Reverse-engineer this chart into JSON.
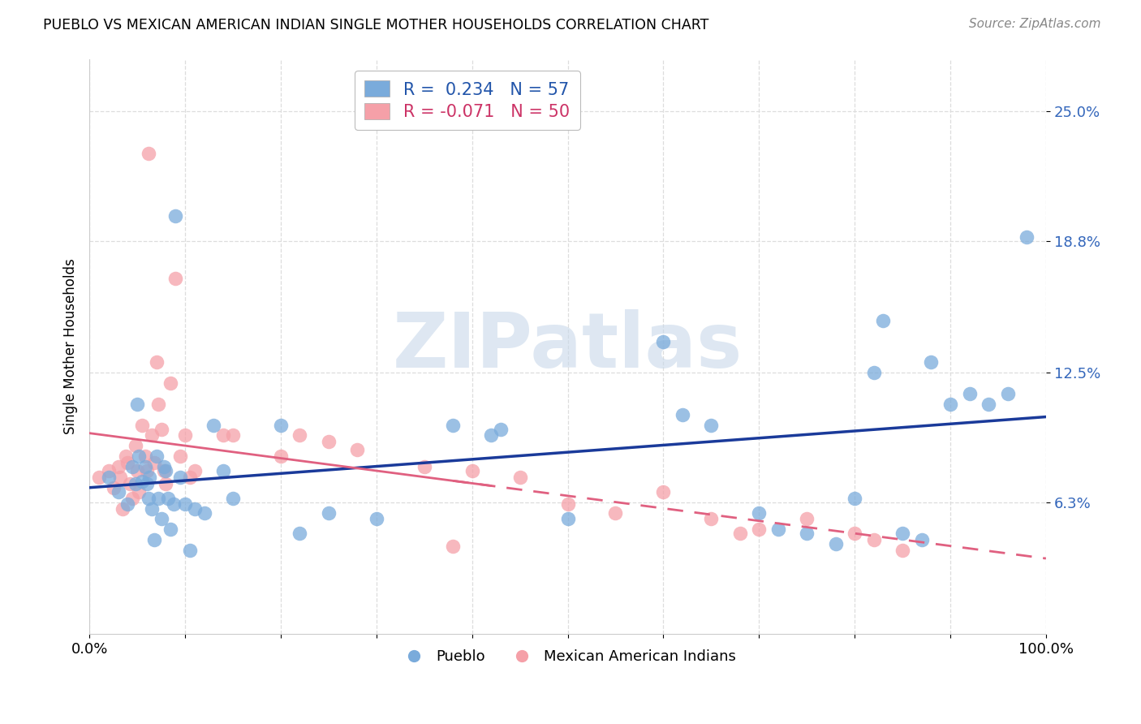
{
  "title": "PUEBLO VS MEXICAN AMERICAN INDIAN SINGLE MOTHER HOUSEHOLDS CORRELATION CHART",
  "source": "Source: ZipAtlas.com",
  "ylabel": "Single Mother Households",
  "xmin": 0.0,
  "xmax": 1.0,
  "ymin": 0.0,
  "ymax": 0.275,
  "yticks": [
    0.063,
    0.125,
    0.188,
    0.25
  ],
  "ytick_labels": [
    "6.3%",
    "12.5%",
    "18.8%",
    "25.0%"
  ],
  "xtick_labels": [
    "0.0%",
    "",
    "",
    "",
    "",
    "",
    "",
    "",
    "",
    "",
    "100.0%"
  ],
  "pueblo_color": "#7aabdb",
  "mexican_color": "#f5a0a8",
  "pueblo_R": 0.234,
  "pueblo_N": 57,
  "mexican_R": -0.071,
  "mexican_N": 50,
  "watermark": "ZIPatlas",
  "pueblo_trend_color": "#1a3a9a",
  "mexican_trend_color": "#e06080",
  "pueblo_points_x": [
    0.02,
    0.03,
    0.04,
    0.045,
    0.048,
    0.05,
    0.052,
    0.055,
    0.058,
    0.06,
    0.062,
    0.063,
    0.065,
    0.068,
    0.07,
    0.072,
    0.075,
    0.078,
    0.08,
    0.082,
    0.085,
    0.088,
    0.09,
    0.095,
    0.1,
    0.105,
    0.11,
    0.12,
    0.13,
    0.14,
    0.15,
    0.2,
    0.22,
    0.25,
    0.3,
    0.38,
    0.42,
    0.43,
    0.5,
    0.6,
    0.62,
    0.65,
    0.7,
    0.72,
    0.75,
    0.78,
    0.8,
    0.82,
    0.83,
    0.85,
    0.87,
    0.88,
    0.9,
    0.92,
    0.94,
    0.96,
    0.98
  ],
  "pueblo_points_y": [
    0.075,
    0.068,
    0.062,
    0.08,
    0.072,
    0.11,
    0.085,
    0.073,
    0.08,
    0.072,
    0.065,
    0.075,
    0.06,
    0.045,
    0.085,
    0.065,
    0.055,
    0.08,
    0.078,
    0.065,
    0.05,
    0.062,
    0.2,
    0.075,
    0.062,
    0.04,
    0.06,
    0.058,
    0.1,
    0.078,
    0.065,
    0.1,
    0.048,
    0.058,
    0.055,
    0.1,
    0.095,
    0.098,
    0.055,
    0.14,
    0.105,
    0.1,
    0.058,
    0.05,
    0.048,
    0.043,
    0.065,
    0.125,
    0.15,
    0.048,
    0.045,
    0.13,
    0.11,
    0.115,
    0.11,
    0.115,
    0.19
  ],
  "mexican_points_x": [
    0.01,
    0.02,
    0.025,
    0.03,
    0.032,
    0.035,
    0.038,
    0.04,
    0.042,
    0.045,
    0.048,
    0.05,
    0.052,
    0.055,
    0.058,
    0.06,
    0.062,
    0.065,
    0.068,
    0.07,
    0.072,
    0.075,
    0.078,
    0.08,
    0.085,
    0.09,
    0.095,
    0.1,
    0.105,
    0.11,
    0.14,
    0.15,
    0.2,
    0.22,
    0.25,
    0.28,
    0.35,
    0.38,
    0.4,
    0.45,
    0.5,
    0.55,
    0.6,
    0.65,
    0.68,
    0.7,
    0.75,
    0.8,
    0.82,
    0.85
  ],
  "mexican_points_y": [
    0.075,
    0.078,
    0.07,
    0.08,
    0.075,
    0.06,
    0.085,
    0.082,
    0.072,
    0.065,
    0.09,
    0.078,
    0.068,
    0.1,
    0.085,
    0.078,
    0.23,
    0.095,
    0.082,
    0.13,
    0.11,
    0.098,
    0.078,
    0.072,
    0.12,
    0.17,
    0.085,
    0.095,
    0.075,
    0.078,
    0.095,
    0.095,
    0.085,
    0.095,
    0.092,
    0.088,
    0.08,
    0.042,
    0.078,
    0.075,
    0.062,
    0.058,
    0.068,
    0.055,
    0.048,
    0.05,
    0.055,
    0.048,
    0.045,
    0.04
  ]
}
